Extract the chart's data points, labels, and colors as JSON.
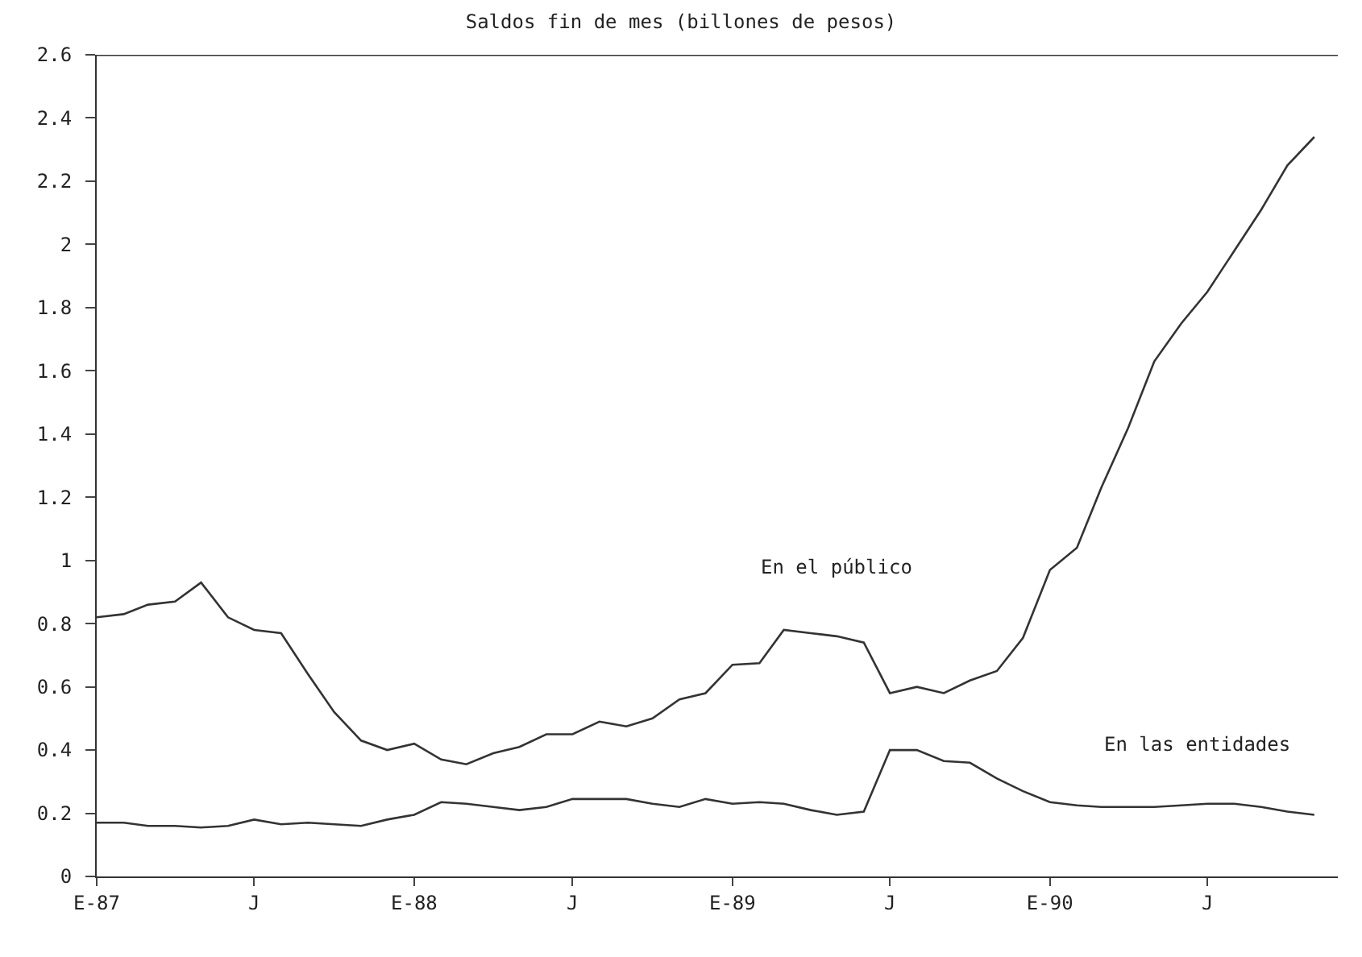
{
  "chart_data": {
    "type": "line",
    "title": "Saldos fin de mes (billones de pesos)",
    "x": [
      "1987-01",
      "1987-02",
      "1987-03",
      "1987-04",
      "1987-05",
      "1987-06",
      "1987-07",
      "1987-08",
      "1987-09",
      "1987-10",
      "1987-11",
      "1987-12",
      "1988-01",
      "1988-02",
      "1988-03",
      "1988-04",
      "1988-05",
      "1988-06",
      "1988-07",
      "1988-08",
      "1988-09",
      "1988-10",
      "1988-11",
      "1988-12",
      "1989-01",
      "1989-02",
      "1989-03",
      "1989-04",
      "1989-05",
      "1989-06",
      "1989-07",
      "1989-08",
      "1989-09",
      "1989-10",
      "1989-11",
      "1989-12",
      "1990-01",
      "1990-02",
      "1990-03",
      "1990-04",
      "1990-05",
      "1990-06",
      "1990-07",
      "1990-08",
      "1990-09",
      "1990-10",
      "1990-11"
    ],
    "series": [
      {
        "name": "En el público",
        "color": "#333333",
        "values": [
          0.82,
          0.83,
          0.86,
          0.87,
          0.93,
          0.82,
          0.78,
          0.77,
          0.64,
          0.52,
          0.43,
          0.4,
          0.42,
          0.37,
          0.355,
          0.39,
          0.41,
          0.45,
          0.45,
          0.49,
          0.475,
          0.5,
          0.56,
          0.58,
          0.67,
          0.675,
          0.78,
          0.77,
          0.76,
          0.74,
          0.58,
          0.6,
          0.58,
          0.62,
          0.65,
          0.755,
          0.97,
          1.04,
          1.23,
          1.42,
          1.63,
          1.75,
          1.85,
          1.98,
          2.11,
          2.25,
          2.34
        ]
      },
      {
        "name": "En las entidades",
        "color": "#333333",
        "values": [
          0.17,
          0.17,
          0.16,
          0.16,
          0.155,
          0.16,
          0.18,
          0.165,
          0.17,
          0.165,
          0.16,
          0.18,
          0.195,
          0.235,
          0.23,
          0.22,
          0.21,
          0.22,
          0.245,
          0.245,
          0.245,
          0.23,
          0.22,
          0.245,
          0.23,
          0.235,
          0.23,
          0.21,
          0.195,
          0.205,
          0.4,
          0.4,
          0.365,
          0.36,
          0.31,
          0.27,
          0.235,
          0.225,
          0.22,
          0.22,
          0.22,
          0.225,
          0.23,
          0.23,
          0.22,
          0.205,
          0.195
        ]
      }
    ],
    "xlim": [
      "1987-01-01",
      "1990-11-28"
    ],
    "xticks": [
      {
        "value": "1987-01-01",
        "label": "E-87"
      },
      {
        "value": "1987-07-01",
        "label": "J"
      },
      {
        "value": "1988-01-01",
        "label": "E-88"
      },
      {
        "value": "1988-07-01",
        "label": "J"
      },
      {
        "value": "1989-01-01",
        "label": "E-89"
      },
      {
        "value": "1989-07-01",
        "label": "J"
      },
      {
        "value": "1990-01-01",
        "label": "E-90"
      },
      {
        "value": "1990-07-01",
        "label": "J"
      }
    ],
    "ylim": [
      0,
      2.6
    ],
    "yticks": [
      0,
      0.2,
      0.4,
      0.6,
      0.8,
      1,
      1.2,
      1.4,
      1.6,
      1.8,
      2,
      2.2,
      2.4,
      2.6
    ],
    "marker": "none",
    "line_style": "solid"
  }
}
